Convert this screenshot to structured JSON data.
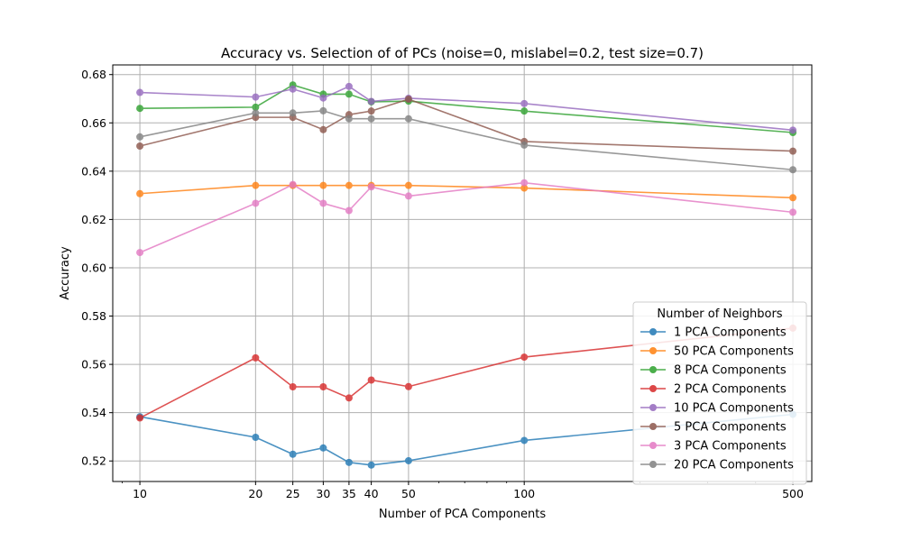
{
  "chart_data": {
    "type": "line",
    "title": "Accuracy vs. Selection of of PCs (noise=0, mislabel=0.2, test size=0.7)",
    "xlabel": "Number of PCA Components",
    "ylabel": "Accuracy",
    "x_scale": "log",
    "x": [
      10,
      20,
      25,
      30,
      35,
      40,
      50,
      100,
      500
    ],
    "x_tick_labels": [
      "10",
      "20",
      "25",
      "30",
      "35",
      "40",
      "50",
      "100",
      "500"
    ],
    "xlim": [
      8.5,
      560
    ],
    "ylim": [
      0.5115,
      0.684
    ],
    "y_ticks": [
      0.52,
      0.54,
      0.56,
      0.58,
      0.6,
      0.62,
      0.64,
      0.66,
      0.68
    ],
    "y_tick_labels": [
      "0.52",
      "0.54",
      "0.56",
      "0.58",
      "0.60",
      "0.62",
      "0.64",
      "0.66",
      "0.68"
    ],
    "grid": true,
    "legend_title": "Number of Neighbors",
    "legend_position": "lower-right",
    "series": [
      {
        "name": "1 PCA Components",
        "color": "#1f77b4",
        "values": [
          0.5383,
          0.5298,
          0.5228,
          0.5254,
          0.5194,
          0.5183,
          0.5201,
          0.5285,
          0.5393
        ]
      },
      {
        "name": "50 PCA Components",
        "color": "#ff7f0e",
        "values": [
          0.6307,
          0.6341,
          0.6341,
          0.6341,
          0.6341,
          0.6341,
          0.6341,
          0.633,
          0.629
        ]
      },
      {
        "name": "8 PCA Components",
        "color": "#2ca02c",
        "values": [
          0.666,
          0.6665,
          0.6757,
          0.6719,
          0.6719,
          0.6687,
          0.669,
          0.6649,
          0.656
        ]
      },
      {
        "name": "2 PCA Components",
        "color": "#d62728",
        "values": [
          0.5378,
          0.5627,
          0.5507,
          0.5507,
          0.5461,
          0.5535,
          0.5508,
          0.563,
          0.575
        ]
      },
      {
        "name": "10 PCA Components",
        "color": "#9467bd",
        "values": [
          0.6726,
          0.6707,
          0.674,
          0.6703,
          0.6751,
          0.6689,
          0.6702,
          0.668,
          0.657
        ]
      },
      {
        "name": "5 PCA Components",
        "color": "#8c564b",
        "values": [
          0.6504,
          0.6623,
          0.6623,
          0.6572,
          0.6634,
          0.6649,
          0.6698,
          0.6523,
          0.6483
        ]
      },
      {
        "name": "3 PCA Components",
        "color": "#e377c2",
        "values": [
          0.6063,
          0.6267,
          0.6345,
          0.6267,
          0.6237,
          0.6335,
          0.6297,
          0.6352,
          0.623
        ]
      },
      {
        "name": "20 PCA Components",
        "color": "#7f7f7f",
        "values": [
          0.6542,
          0.6641,
          0.6641,
          0.665,
          0.6617,
          0.6617,
          0.6617,
          0.6508,
          0.6406
        ]
      }
    ]
  }
}
